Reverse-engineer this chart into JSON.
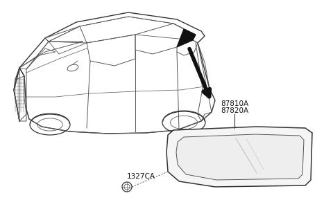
{
  "bg_color": "#ffffff",
  "label_87810A": "87810A",
  "label_87820A": "87820A",
  "label_1327CA": "1327CA",
  "lc": "#555555",
  "lc_dark": "#333333",
  "font_size": 7.5,
  "font_family": "DejaVu Sans"
}
